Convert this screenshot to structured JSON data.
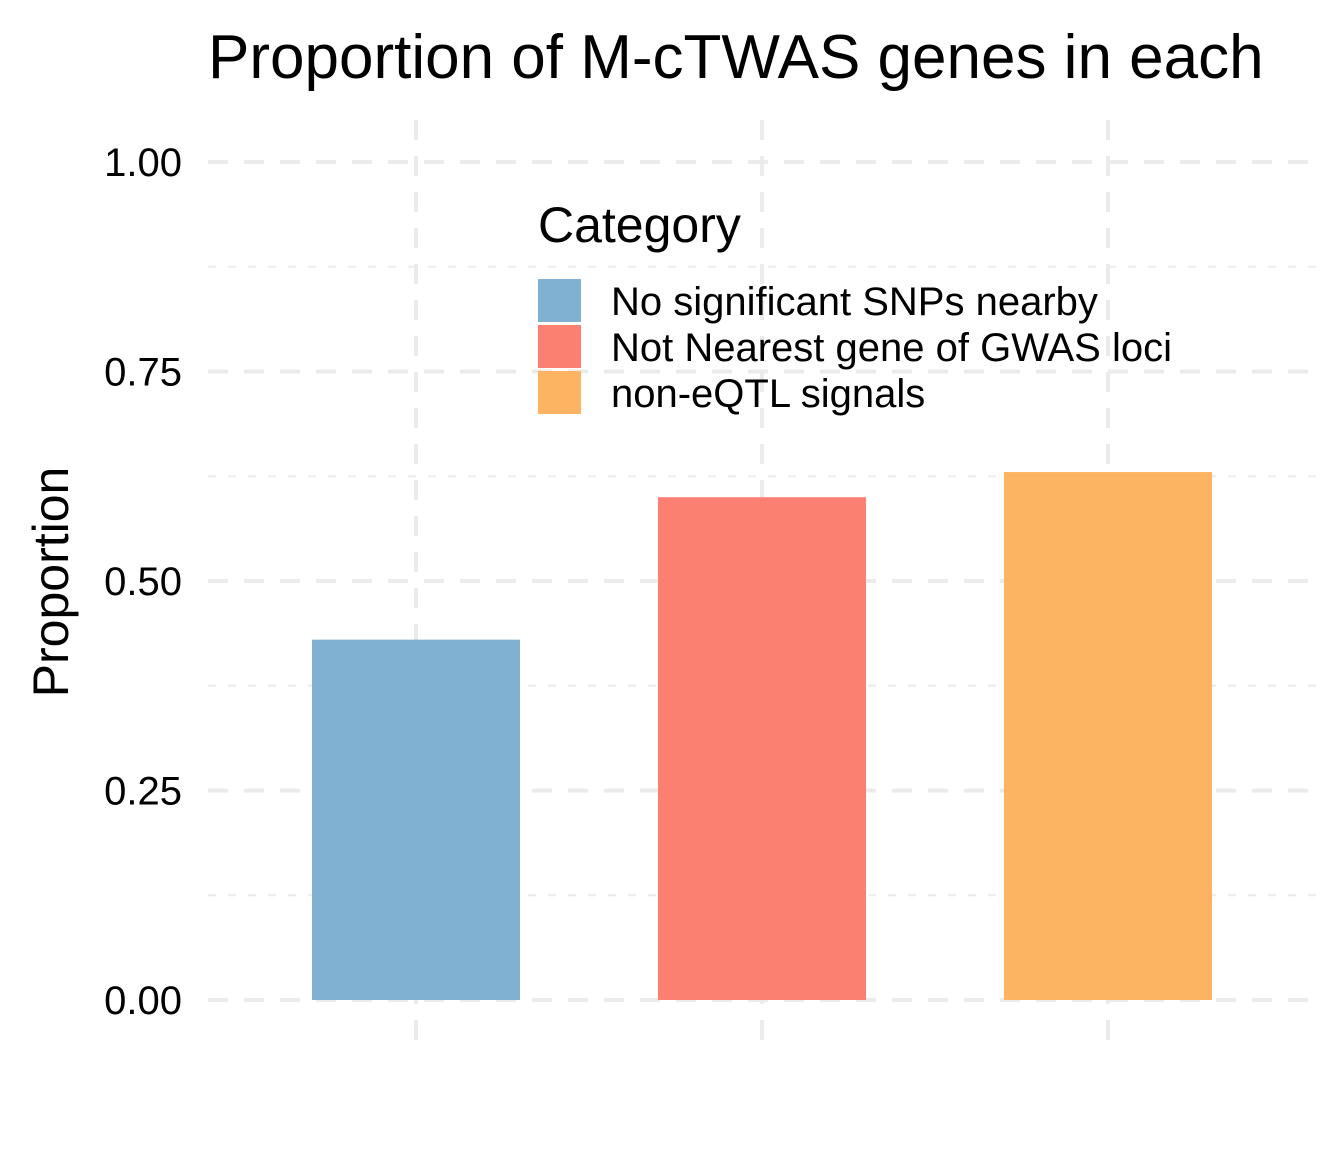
{
  "chart_data": {
    "type": "bar",
    "title": "Proportion of M-cTWAS genes in each",
    "xlabel": "",
    "ylabel": "Proportion",
    "categories": [
      "No significant SNPs nearby",
      "Not Nearest gene of GWAS loci",
      "non-eQTL signals"
    ],
    "values": [
      0.43,
      0.6,
      0.63
    ],
    "colors": [
      "#80B1D3",
      "#FB8072",
      "#FDB462"
    ],
    "ylim": [
      0,
      1
    ],
    "yticks": [
      0,
      0.25,
      0.5,
      0.75,
      1
    ],
    "ytick_labels": [
      "0.00",
      "0.25",
      "0.50",
      "0.75",
      "1.00"
    ],
    "grid": true,
    "legend": {
      "title": "Category",
      "placement": "top-center-inside",
      "entries": [
        "No significant SNPs nearby",
        "Not Nearest gene of GWAS loci",
        "non-eQTL signals"
      ]
    }
  }
}
